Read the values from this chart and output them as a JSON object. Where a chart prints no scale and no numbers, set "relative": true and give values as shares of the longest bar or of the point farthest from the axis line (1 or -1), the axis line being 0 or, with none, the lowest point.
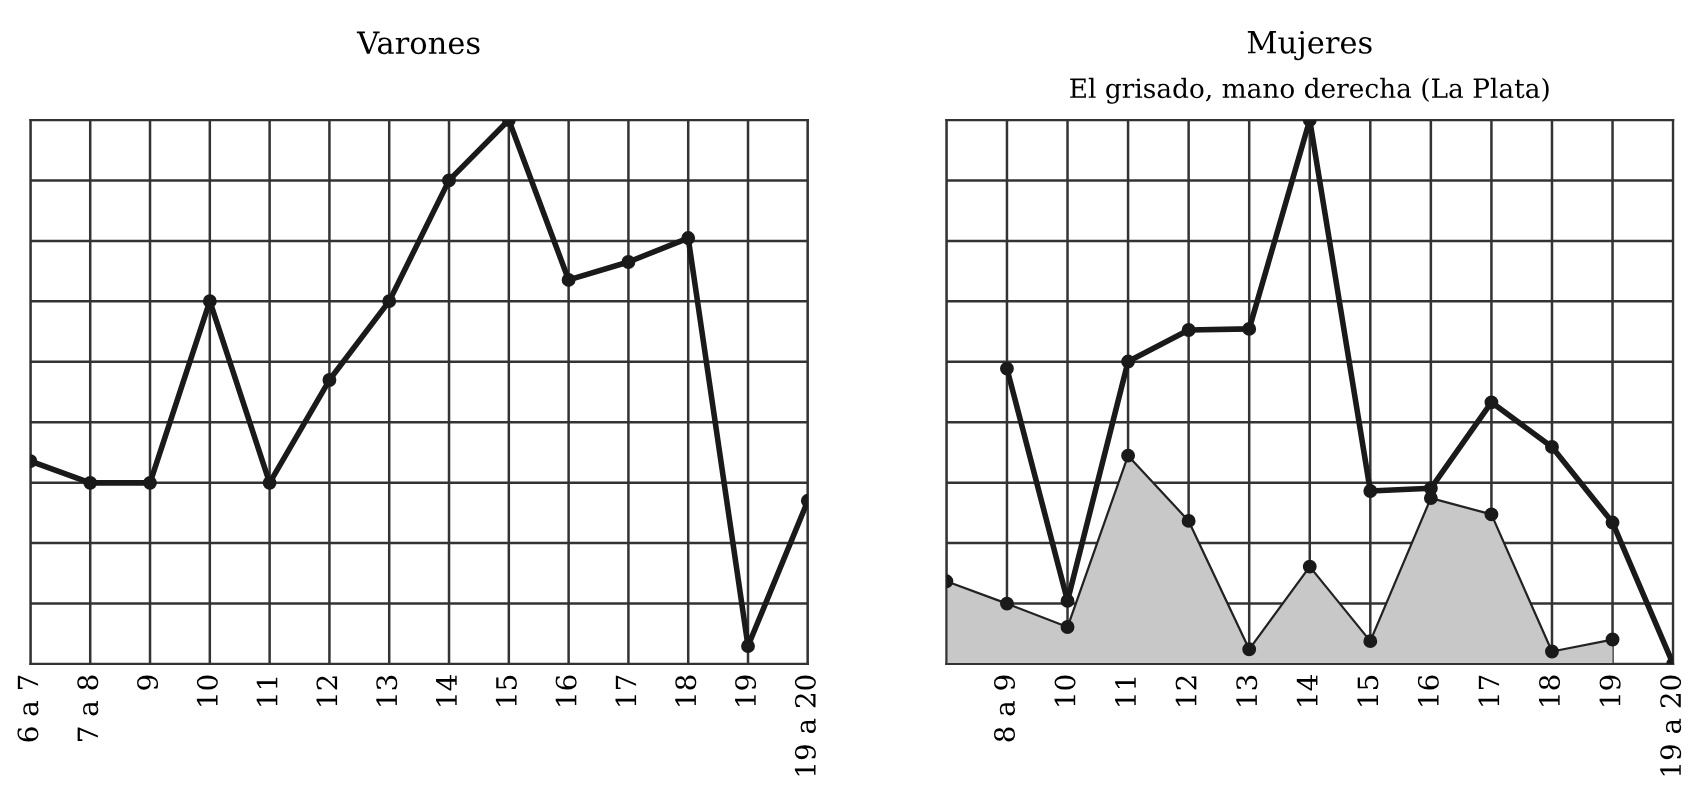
{
  "chart_data": [
    {
      "type": "line",
      "title": "Varones",
      "relative": true,
      "grid": true,
      "marker": "circle",
      "line_style": "solid",
      "categories": [
        "6 a 7",
        "7 a 8",
        "9",
        "10",
        "11",
        "12",
        "13",
        "14",
        "15",
        "16",
        "17",
        "18",
        "19",
        "19 a 20"
      ],
      "series": [
        {
          "color": "#1a1a1a",
          "values": [
            0.373,
            0.333,
            0.333,
            0.667,
            0.333,
            0.522,
            0.667,
            0.889,
            1,
            0.706,
            0.739,
            0.783,
            0.033,
            0.3
          ]
        }
      ]
    },
    {
      "type": "line",
      "title": "Mujeres",
      "subtitle": "El grisado, mano derecha (La Plata)",
      "relative": true,
      "grid": true,
      "marker": "circle",
      "line_style": "solid",
      "categories": [
        null,
        "8 a 9",
        "10",
        "11",
        "12",
        "13",
        "14",
        "15",
        "16",
        "17",
        "18",
        "19",
        "19 a 20"
      ],
      "series": [
        {
          "type": "area",
          "color": "#c8c8c8",
          "values": [
            0.152,
            0.111,
            0.068,
            0.383,
            0.263,
            0.027,
            0.179,
            0.042,
            0.305,
            0.275,
            0.023,
            0.045,
            null
          ]
        },
        {
          "color": "#1a1a1a",
          "values": [
            null,
            0.543,
            0.116,
            0.556,
            0.614,
            0.616,
            1,
            0.318,
            0.323,
            0.481,
            0.399,
            0.26,
            0
          ]
        }
      ]
    }
  ]
}
